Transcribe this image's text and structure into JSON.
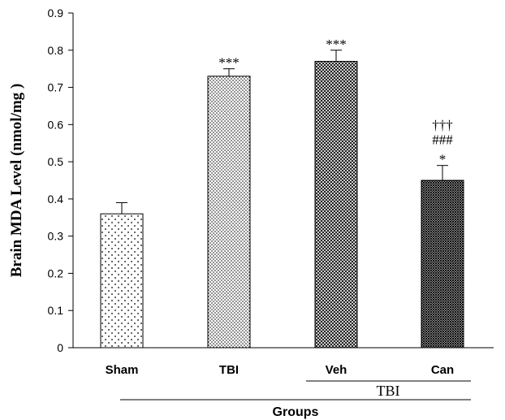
{
  "chart_data": {
    "type": "bar",
    "categories": [
      "Sham",
      "TBI",
      "Veh",
      "Can"
    ],
    "values": [
      0.36,
      0.73,
      0.77,
      0.45
    ],
    "errors": [
      0.03,
      0.02,
      0.03,
      0.04
    ],
    "annotations": [
      [],
      [
        "***"
      ],
      [
        "***"
      ],
      [
        "†††",
        "###",
        "*"
      ]
    ],
    "patterns": [
      "sparse-dots",
      "dense-dots",
      "crosshatch",
      "dense-crosshatch"
    ],
    "ylabel": "Brain MDA Level (nmol/mg )",
    "xlabel": "Groups",
    "subgroup_label": "TBI",
    "ylim": [
      0,
      0.9
    ],
    "yticks": [
      "0",
      "0.1",
      "0.2",
      "0.3",
      "0.4",
      "0.5",
      "0.6",
      "0.7",
      "0.8",
      "0.9"
    ],
    "grid": false,
    "colors": {
      "bar_outline": "#000000",
      "pattern": "#000000",
      "background": "#ffffff"
    }
  }
}
